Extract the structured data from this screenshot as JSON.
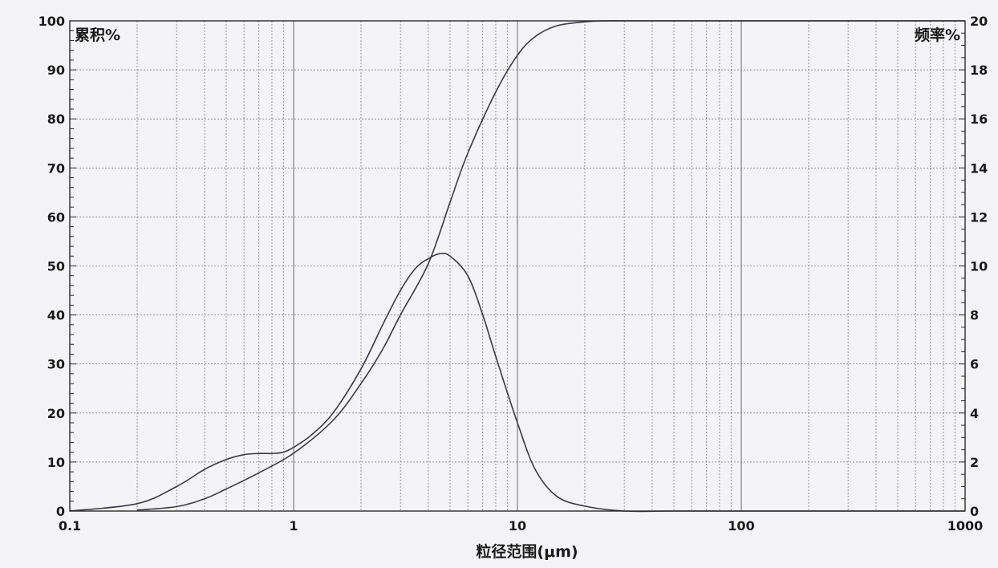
{
  "chart_data": {
    "type": "line",
    "title": "",
    "xlabel": "粒径范围(μm)",
    "ylabel_left": "累积%",
    "ylabel_right": "频率%",
    "x_scale": "log",
    "xlim": [
      0.1,
      1000
    ],
    "ylim_left": [
      0,
      100
    ],
    "ylim_right": [
      0,
      20
    ],
    "x_ticks": [
      "0.1",
      "1",
      "10",
      "100",
      "1000"
    ],
    "y_left_ticks": [
      "0",
      "10",
      "20",
      "30",
      "40",
      "50",
      "60",
      "70",
      "80",
      "90",
      "100"
    ],
    "y_right_ticks": [
      "0",
      "2",
      "4",
      "6",
      "8",
      "10",
      "12",
      "14",
      "16",
      "18",
      "20"
    ],
    "grid": true,
    "series": [
      {
        "axis": "left",
        "x": [
          0.2,
          0.3,
          0.4,
          0.5,
          0.7,
          1.0,
          1.5,
          2.0,
          2.5,
          3.0,
          4.0,
          5.0,
          6.0,
          8.0,
          10.0,
          12.0,
          15.0,
          20.0,
          25.0,
          30.0,
          50.0,
          100.0,
          1000.0
        ],
        "y": [
          0.2,
          0.9,
          2.5,
          4.5,
          7.8,
          11.8,
          18.5,
          26.0,
          33.0,
          40.0,
          50.5,
          63.0,
          73.0,
          85.5,
          93.0,
          96.8,
          99.0,
          99.8,
          100.0,
          100.0,
          100.0,
          100.0,
          100.0
        ]
      },
      {
        "axis": "right",
        "x": [
          0.1,
          0.2,
          0.3,
          0.4,
          0.5,
          0.6,
          0.7,
          0.8,
          0.9,
          1.0,
          1.2,
          1.5,
          2.0,
          2.5,
          3.0,
          3.5,
          4.0,
          4.5,
          5.0,
          6.0,
          7.0,
          8.0,
          10.0,
          12.0,
          15.0,
          20.0,
          30.0,
          50.0,
          100.0,
          1000.0
        ],
        "y": [
          0.0,
          0.3,
          1.0,
          1.7,
          2.1,
          2.3,
          2.35,
          2.35,
          2.4,
          2.6,
          3.1,
          4.0,
          5.8,
          7.6,
          9.0,
          9.9,
          10.3,
          10.5,
          10.4,
          9.6,
          8.0,
          6.3,
          3.6,
          1.7,
          0.6,
          0.2,
          0.0,
          0.0,
          0.0,
          0.0
        ]
      }
    ]
  }
}
